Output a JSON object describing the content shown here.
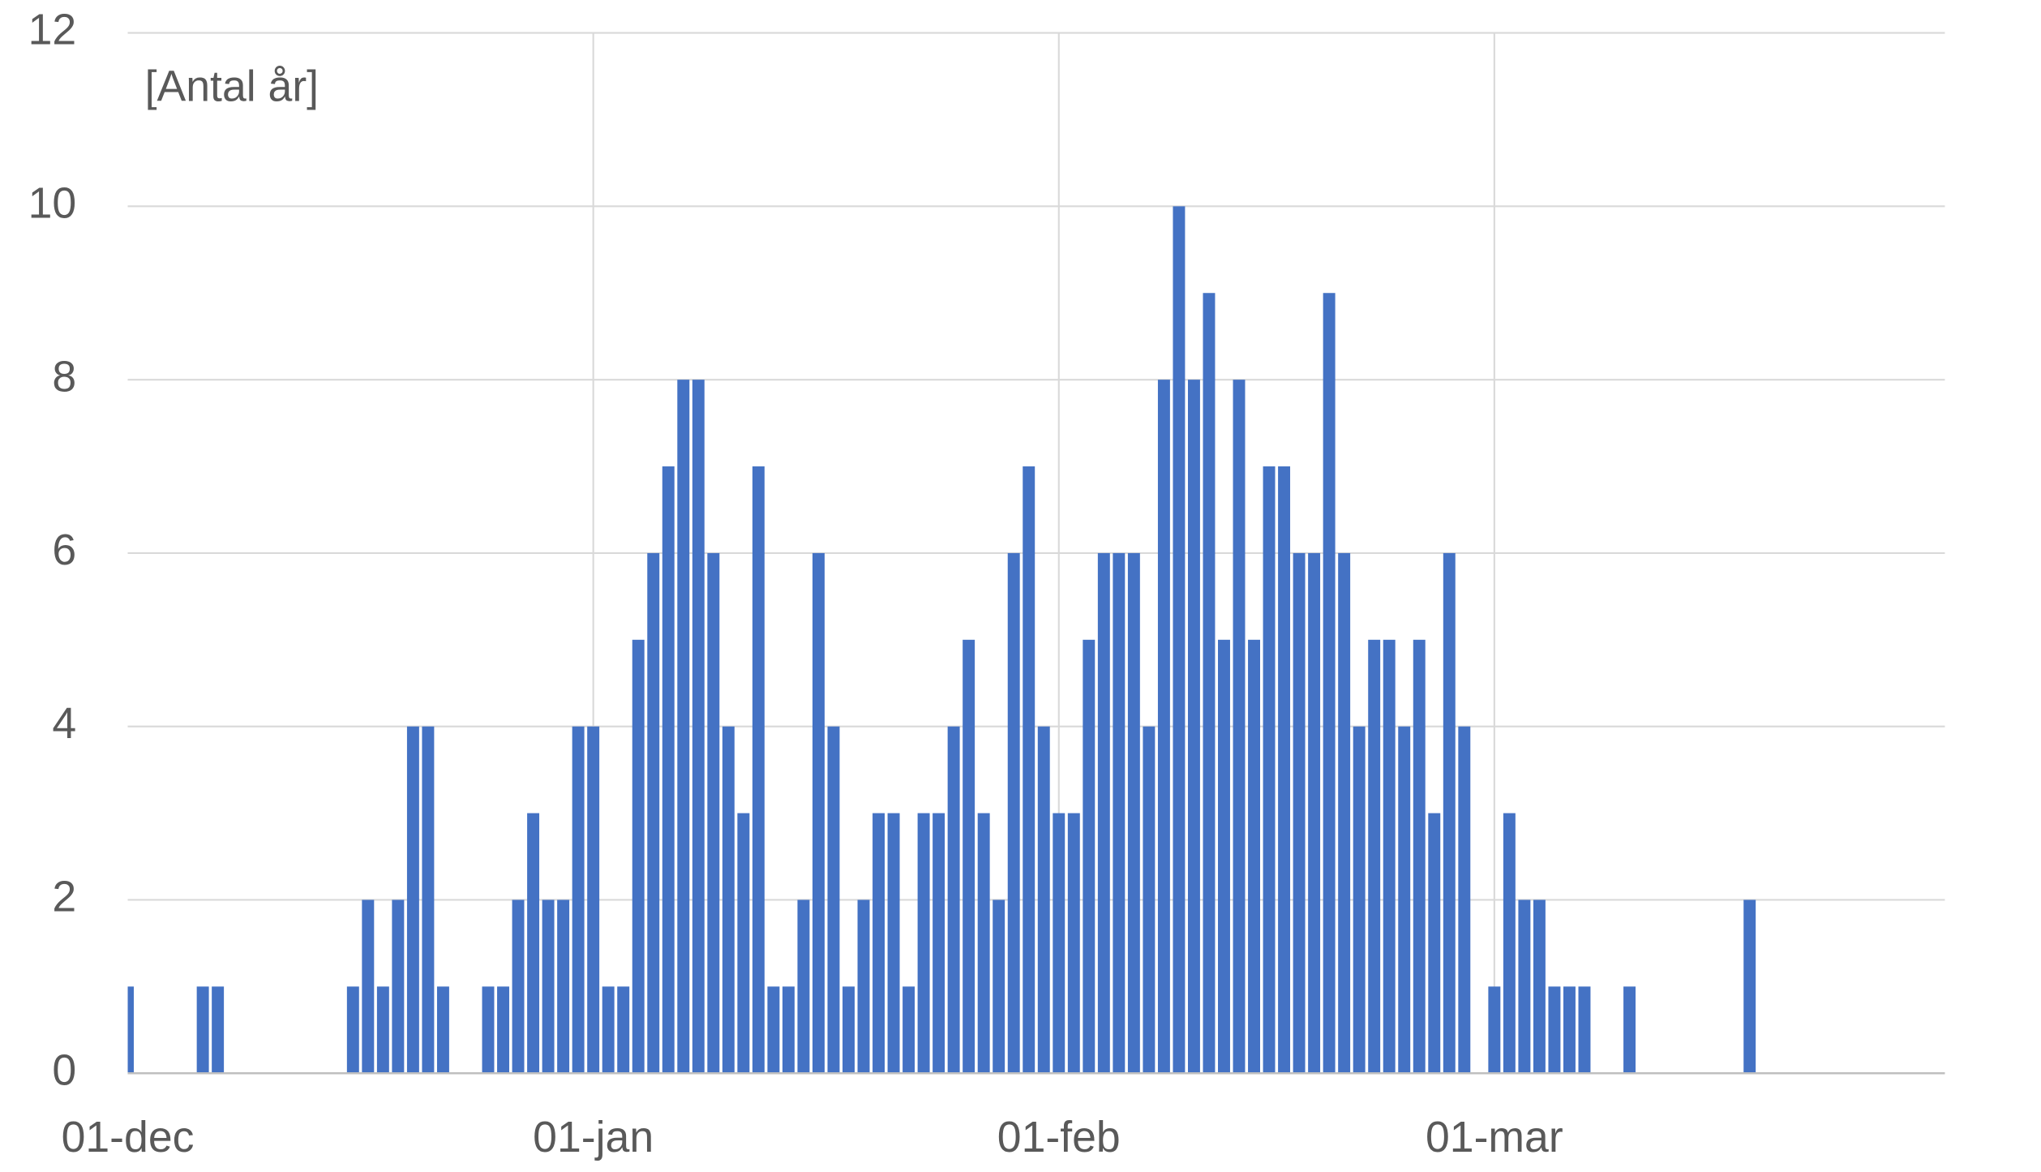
{
  "chart_data": {
    "type": "bar",
    "annotation": "[Antal år]",
    "categories": [
      "01-dec",
      null,
      null,
      null,
      null,
      null,
      null,
      null,
      null,
      null,
      null,
      null,
      null,
      null,
      null,
      null,
      null,
      null,
      null,
      null,
      null,
      null,
      null,
      null,
      null,
      null,
      null,
      null,
      null,
      null,
      null,
      "01-jan",
      null,
      null,
      null,
      null,
      null,
      null,
      null,
      null,
      null,
      null,
      null,
      null,
      null,
      null,
      null,
      null,
      null,
      null,
      null,
      null,
      null,
      null,
      null,
      null,
      null,
      null,
      null,
      null,
      null,
      null,
      "01-feb",
      null,
      null,
      null,
      null,
      null,
      null,
      null,
      null,
      null,
      null,
      null,
      null,
      null,
      null,
      null,
      null,
      null,
      null,
      null,
      null,
      null,
      null,
      null,
      null,
      null,
      null,
      null,
      null,
      "01-mar",
      null,
      null,
      null,
      null,
      null,
      null,
      null,
      null,
      null,
      null,
      null,
      null,
      null,
      null,
      null,
      null,
      null,
      null,
      null,
      null,
      null,
      null,
      null,
      null,
      null,
      null,
      null,
      null,
      null
    ],
    "values": [
      1,
      0,
      0,
      0,
      0,
      1,
      1,
      0,
      0,
      0,
      0,
      0,
      0,
      0,
      0,
      1,
      2,
      1,
      2,
      4,
      4,
      1,
      0,
      0,
      1,
      1,
      2,
      3,
      2,
      2,
      4,
      4,
      1,
      1,
      5,
      6,
      7,
      8,
      8,
      6,
      4,
      3,
      7,
      1,
      1,
      2,
      6,
      4,
      1,
      2,
      3,
      3,
      1,
      3,
      3,
      4,
      5,
      3,
      2,
      6,
      7,
      4,
      3,
      3,
      5,
      6,
      6,
      6,
      4,
      8,
      10,
      8,
      9,
      5,
      8,
      5,
      7,
      7,
      6,
      6,
      9,
      6,
      4,
      5,
      5,
      4,
      5,
      3,
      6,
      4,
      0,
      1,
      3,
      2,
      2,
      1,
      1,
      1,
      0,
      0,
      1,
      0,
      0,
      0,
      0,
      0,
      0,
      0,
      2,
      0,
      0,
      0,
      0,
      0,
      0,
      0,
      0,
      0,
      0,
      0,
      0
    ],
    "color": "#4472c4",
    "ylim": [
      0,
      12
    ],
    "yticks": [
      0,
      2,
      4,
      6,
      8,
      10,
      12
    ],
    "grid": true
  }
}
